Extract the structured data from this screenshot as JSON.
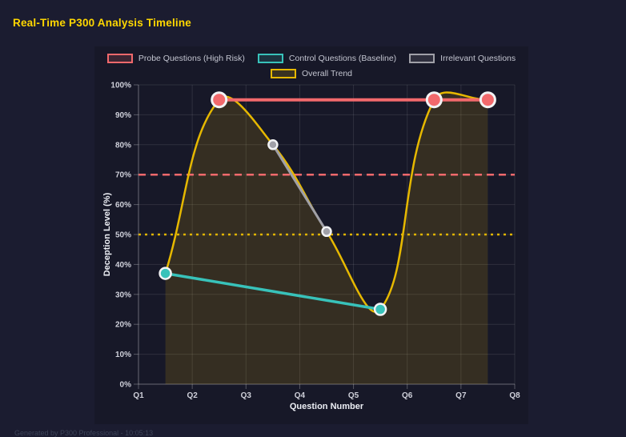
{
  "header": {
    "title": "Real-Time P300 Analysis Timeline",
    "title_color": "#ffd700"
  },
  "footer": {
    "text": "Generated by P300 Professional - 10:05:13"
  },
  "chart_data": {
    "type": "line",
    "title": "Real-Time P300 Analysis Timeline",
    "x": {
      "title": "Question Number",
      "labels": [
        "Q1",
        "Q2",
        "Q3",
        "Q4",
        "Q5",
        "Q6",
        "Q7",
        "Q8"
      ],
      "min": 1,
      "max": 8
    },
    "y": {
      "title": "Deception Level (%)",
      "min": 0,
      "max": 100,
      "step": 10,
      "tick_suffix": "%"
    },
    "grid": true,
    "legend_position": "top",
    "series": [
      {
        "name": "Probe Questions (High Risk)",
        "color": "#f2696c",
        "x": [
          2.5,
          6.5,
          7.5
        ],
        "values": [
          95,
          95,
          95
        ],
        "line_width": 4,
        "point_radius": 9,
        "smooth": false,
        "fill": false
      },
      {
        "name": "Control Questions (Baseline)",
        "color": "#38c2ba",
        "x": [
          1.5,
          5.5
        ],
        "values": [
          37,
          25
        ],
        "line_width": 3.5,
        "point_radius": 7,
        "smooth": false,
        "fill": false
      },
      {
        "name": "Irrelevant Questions",
        "color": "#a0a0a8",
        "x": [
          3.5,
          4.5
        ],
        "values": [
          80,
          51
        ],
        "line_width": 3,
        "point_radius": 5.5,
        "smooth": false,
        "fill": false
      },
      {
        "name": "Overall Trend",
        "color": "#e6b800",
        "x": [
          1.5,
          2.5,
          3.5,
          4.5,
          5.5,
          6.5,
          7.5
        ],
        "values": [
          37,
          95,
          80,
          51,
          25,
          95,
          95
        ],
        "line_width": 2.5,
        "point_radius": 0,
        "smooth": true,
        "fill": true,
        "fill_color": "rgba(255,200,0,0.13)"
      }
    ],
    "thresholds": [
      {
        "value": 70,
        "color": "#f2696c",
        "style": "dashed"
      },
      {
        "value": 50,
        "color": "#e0b400",
        "style": "dotted"
      }
    ]
  }
}
